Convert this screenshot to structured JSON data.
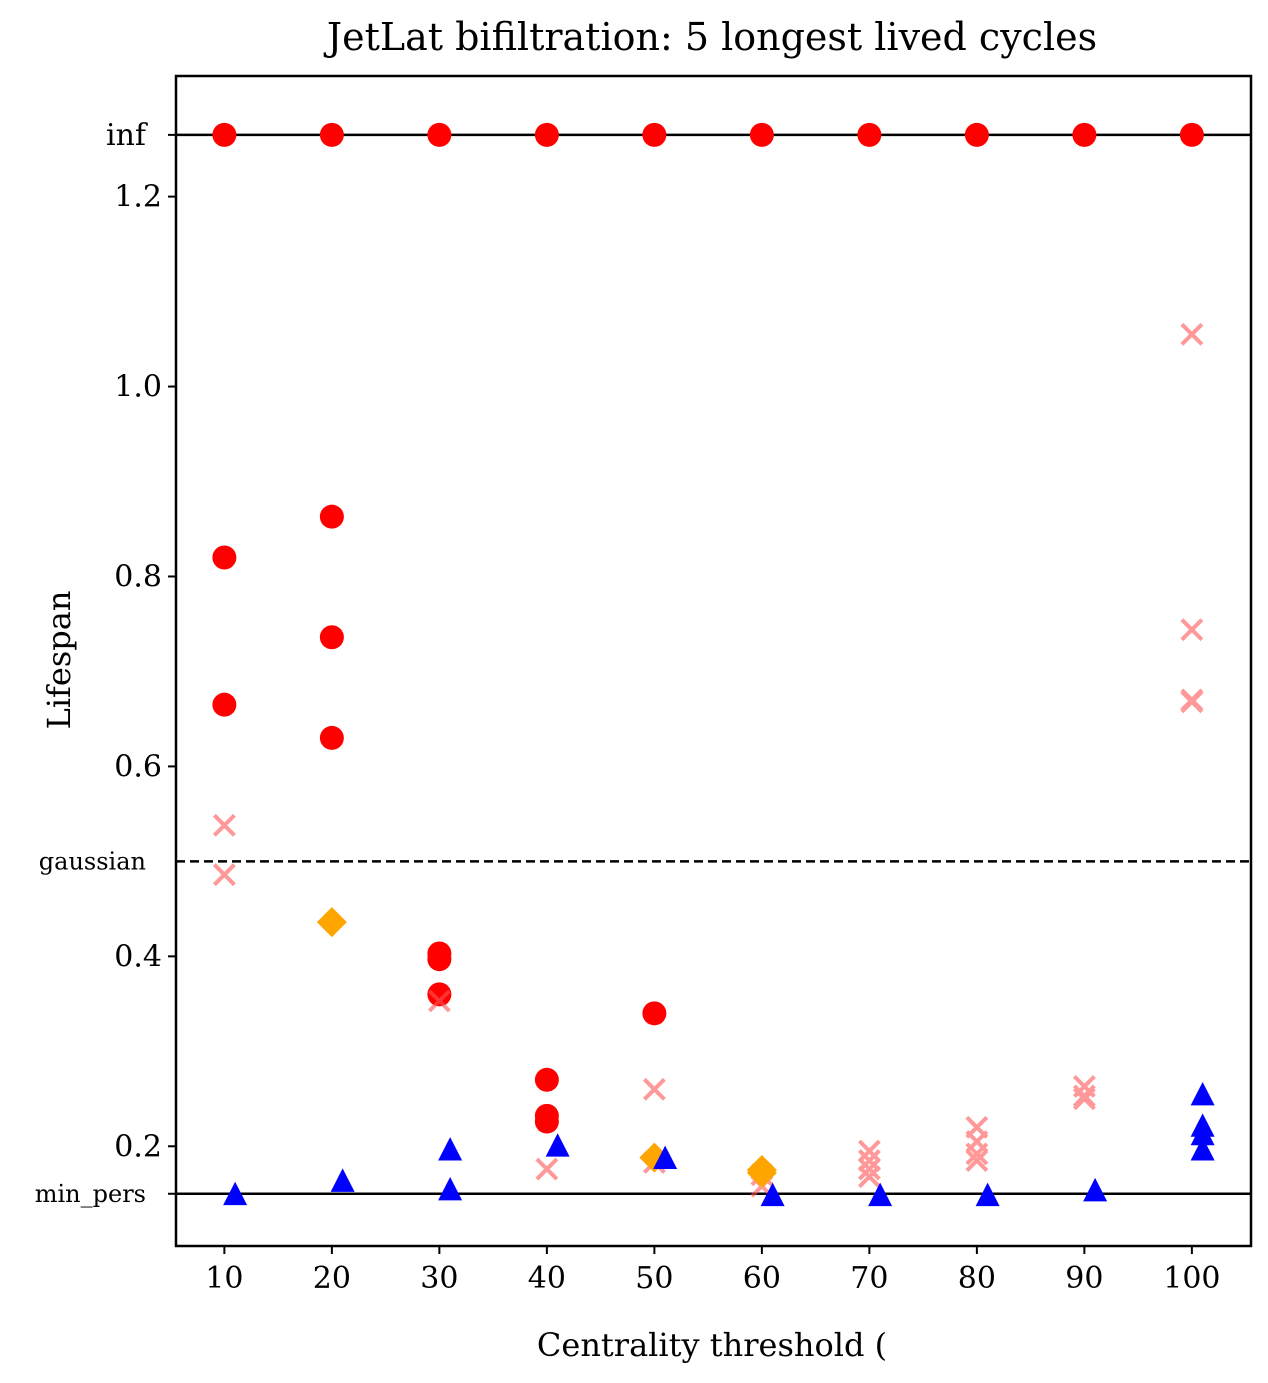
{
  "chart_data": {
    "type": "scatter",
    "title": "JetLat bifiltration: 5 longest lived cycles",
    "xlabel": "Centrality threshold (",
    "ylabel": "Lifespan",
    "xlim": [
      5.5,
      105.5
    ],
    "ylim": [
      0.095,
      1.327
    ],
    "x_ticks": [
      10,
      20,
      30,
      40,
      50,
      60,
      70,
      80,
      90,
      100
    ],
    "y_ticks": [
      0.2,
      0.4,
      0.6,
      0.8,
      1.0,
      1.2
    ],
    "y_tick_labels": [
      "0.2",
      "0.4",
      "0.6",
      "0.8",
      "1.0",
      "1.2"
    ],
    "reference_lines": [
      {
        "name": "inf",
        "label": "inf",
        "y": 1.265,
        "style": "solid"
      },
      {
        "name": "gaussian",
        "label": "gaussian",
        "y": 0.5,
        "style": "dashed"
      },
      {
        "name": "min-pers",
        "label": "min_pers",
        "y": 0.15,
        "style": "solid"
      }
    ],
    "series": [
      {
        "name": "infinite-cycles",
        "marker": "circle",
        "color": "#ff0000",
        "opacity": 1,
        "points": [
          [
            10,
            1.265
          ],
          [
            20,
            1.265
          ],
          [
            30,
            1.265
          ],
          [
            40,
            1.265
          ],
          [
            50,
            1.265
          ],
          [
            60,
            1.265
          ],
          [
            70,
            1.265
          ],
          [
            80,
            1.265
          ],
          [
            90,
            1.265
          ],
          [
            100,
            1.265
          ]
        ]
      },
      {
        "name": "red-circles",
        "marker": "circle",
        "color": "#ff0000",
        "opacity": 1,
        "points": [
          [
            10,
            0.82
          ],
          [
            10,
            0.665
          ],
          [
            20,
            0.863
          ],
          [
            20,
            0.736
          ],
          [
            20,
            0.63
          ],
          [
            30,
            0.403
          ],
          [
            30,
            0.397
          ],
          [
            30,
            0.36
          ],
          [
            40,
            0.27
          ],
          [
            40,
            0.232
          ],
          [
            40,
            0.226
          ],
          [
            50,
            0.34
          ]
        ]
      },
      {
        "name": "light-crosses",
        "marker": "x",
        "color": "#ff5555",
        "opacity": 0.6,
        "points": [
          [
            10,
            0.538
          ],
          [
            10,
            0.486
          ],
          [
            30,
            0.353
          ],
          [
            40,
            0.176
          ],
          [
            50,
            0.26
          ],
          [
            50,
            0.183
          ],
          [
            60,
            0.17
          ],
          [
            60,
            0.158
          ],
          [
            70,
            0.195
          ],
          [
            70,
            0.185
          ],
          [
            70,
            0.176
          ],
          [
            70,
            0.168
          ],
          [
            80,
            0.22
          ],
          [
            80,
            0.205
          ],
          [
            80,
            0.192
          ],
          [
            80,
            0.185
          ],
          [
            90,
            0.263
          ],
          [
            90,
            0.253
          ],
          [
            90,
            0.25
          ],
          [
            100,
            1.055
          ],
          [
            100,
            0.744
          ],
          [
            100,
            0.67
          ],
          [
            100,
            0.668
          ]
        ]
      },
      {
        "name": "orange-diamonds",
        "marker": "diamond",
        "color": "#ffa500",
        "opacity": 1,
        "points": [
          [
            20,
            0.436
          ],
          [
            50,
            0.188
          ],
          [
            60,
            0.175
          ],
          [
            60,
            0.172
          ]
        ]
      },
      {
        "name": "blue-triangles",
        "marker": "triangle",
        "color": "#0000ff",
        "opacity": 1,
        "points": [
          [
            11,
            0.149
          ],
          [
            21,
            0.163
          ],
          [
            31,
            0.196
          ],
          [
            31,
            0.154
          ],
          [
            41,
            0.2
          ],
          [
            51,
            0.187
          ],
          [
            61,
            0.148
          ],
          [
            71,
            0.148
          ],
          [
            81,
            0.148
          ],
          [
            91,
            0.153
          ],
          [
            101,
            0.254
          ],
          [
            101,
            0.221
          ],
          [
            101,
            0.212
          ],
          [
            101,
            0.196
          ]
        ]
      }
    ]
  }
}
